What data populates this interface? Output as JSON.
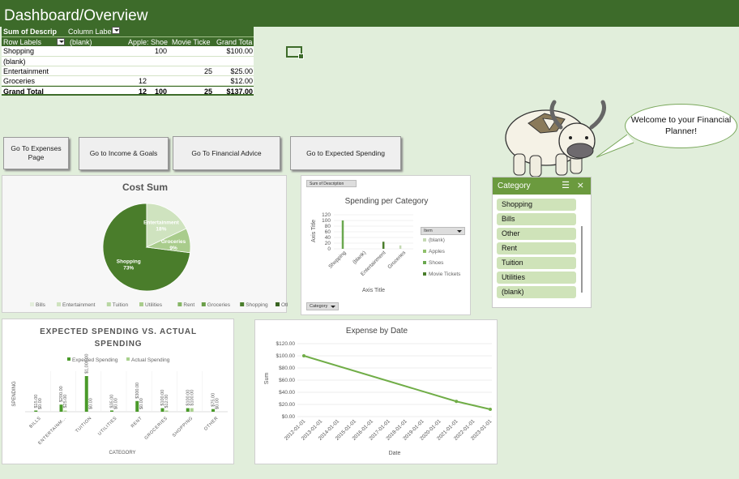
{
  "header": {
    "title": "Dashboard/Overview"
  },
  "pivot": {
    "sum_label": "Sum of Descrip",
    "col_labels": "Column Labe",
    "row_labels": "Row Labels",
    "col_headers": [
      "(blank)",
      "Apple: Shoe",
      "Movie Ticke",
      "Grand Tota"
    ],
    "rows": [
      {
        "label": "Shopping",
        "cells": [
          "",
          "100",
          "",
          "$100.00"
        ]
      },
      {
        "label": "(blank)",
        "cells": [
          "",
          "",
          "",
          ""
        ]
      },
      {
        "label": "Entertainment",
        "cells": [
          "",
          "",
          "25",
          "$25.00"
        ]
      },
      {
        "label": "Groceries",
        "cells": [
          "12",
          "",
          "",
          "$12.00"
        ]
      }
    ],
    "total": {
      "label": "Grand Total",
      "cells": [
        "12",
        "100",
        "25",
        "$137.00"
      ]
    }
  },
  "buttons": {
    "expenses": "Go To Expenses Page",
    "income": "Go to Income & Goals",
    "advice": "Go To Financial Advice",
    "expected": "Go to Expected Spending"
  },
  "bubble": {
    "text": "Welcome to your Financial Planner!"
  },
  "slicer": {
    "title": "Category",
    "items": [
      "Shopping",
      "Bills",
      "Other",
      "Rent",
      "Tuition",
      "Utilities",
      "(blank)"
    ]
  },
  "cost_sum": {
    "title": "Cost Sum",
    "colors": {
      "shopping": "#4a7d2b",
      "groceries": "#a9cc8c",
      "entertainment": "#cfe3bf"
    },
    "chart_data": {
      "type": "pie",
      "title": "Cost Sum",
      "slices": [
        {
          "name": "Shopping",
          "pct": 73,
          "label": "Shopping\n73%"
        },
        {
          "name": "Entertainment",
          "pct": 18,
          "label": "Entertainment\n18%"
        },
        {
          "name": "Groceries",
          "pct": 9,
          "label": "Groceries\n9%"
        }
      ],
      "legend": [
        "Bills",
        "Entertainment",
        "Tuition",
        "Utilities",
        "Rent",
        "Groceries",
        "Shopping",
        "Other"
      ],
      "legend_placement": "bottom"
    }
  },
  "spend_cat": {
    "field_button": "Sum of Description",
    "item_button": "Item",
    "category_button": "Category",
    "chart_data": {
      "type": "bar",
      "title": "Spending per Category",
      "xlabel": "Axis Title",
      "ylabel": "Axis Title",
      "categories": [
        "Shopping",
        "(blank)",
        "Entertainment",
        "Groceries"
      ],
      "ylim": [
        0,
        120
      ],
      "yticks": [
        "120",
        "100",
        "80",
        "60",
        "40",
        "20",
        "0"
      ],
      "series": [
        {
          "name": "(blank)",
          "values": [
            0,
            0,
            0,
            12
          ],
          "color": "#c4d9b3"
        },
        {
          "name": "Apples",
          "values": [
            0,
            0,
            0,
            0
          ],
          "color": "#8fc06a"
        },
        {
          "name": "Shoes",
          "values": [
            100,
            0,
            0,
            0
          ],
          "color": "#6aa84f"
        },
        {
          "name": "Movie Tickets",
          "values": [
            0,
            0,
            25,
            0
          ],
          "color": "#4a7d2b"
        }
      ],
      "legend_placement": "right"
    }
  },
  "expected": {
    "title_line1": "EXPECTED SPENDING VS. ACTUAL",
    "title_line2": "SPENDING",
    "chart_data": {
      "type": "bar",
      "title": "EXPECTED SPENDING VS. ACTUAL SPENDING",
      "xlabel": "CATEGORY",
      "ylabel": "SPENDING",
      "categories": [
        "BILLS",
        "ENTERTAINM...",
        "TUITION",
        "UTILITIES",
        "RENT",
        "GROCERIES",
        "SHOPPING",
        "OTHER"
      ],
      "series": [
        {
          "name": "Expected Spending",
          "color": "#4a9a2a",
          "values": [
            15,
            200,
            1000,
            35,
            300,
            100,
            100,
            75
          ],
          "labels": [
            "$15.00",
            "$200.00",
            "$1,000.00",
            "$35.00",
            "$300.00",
            "$100.00",
            "$100.00",
            "$75.00"
          ]
        },
        {
          "name": "Actual Spending",
          "color": "#a9d18e",
          "values": [
            0,
            25,
            0,
            0,
            0,
            12,
            100,
            0
          ],
          "labels": [
            "$0.00",
            "$25.00",
            "$0.00",
            "$0.00",
            "$0.00",
            "$12.00",
            "$100.00",
            "$0.00"
          ]
        }
      ],
      "legend_placement": "top"
    }
  },
  "expense_date": {
    "chart_data": {
      "type": "line",
      "title": "Expense by Date",
      "xlabel": "Date",
      "ylabel": "Sum",
      "x": [
        "2012-01-01",
        "2013-01-01",
        "2014-01-01",
        "2015-01-01",
        "2016-01-01",
        "2017-01-01",
        "2018-01-01",
        "2019-01-01",
        "2020-01-01",
        "2021-01-01",
        "2022-01-01",
        "2023-01-01"
      ],
      "points": [
        {
          "x": "2012-01-01",
          "y": 100
        },
        {
          "x": "2021-01-01",
          "y": 25
        },
        {
          "x": "2023-01-01",
          "y": 12
        }
      ],
      "ylim": [
        0,
        120
      ],
      "yticks": [
        "$120.00",
        "$100.00",
        "$80.00",
        "$60.00",
        "$40.00",
        "$20.00",
        "$0.00"
      ],
      "color": "#70ad47"
    }
  }
}
